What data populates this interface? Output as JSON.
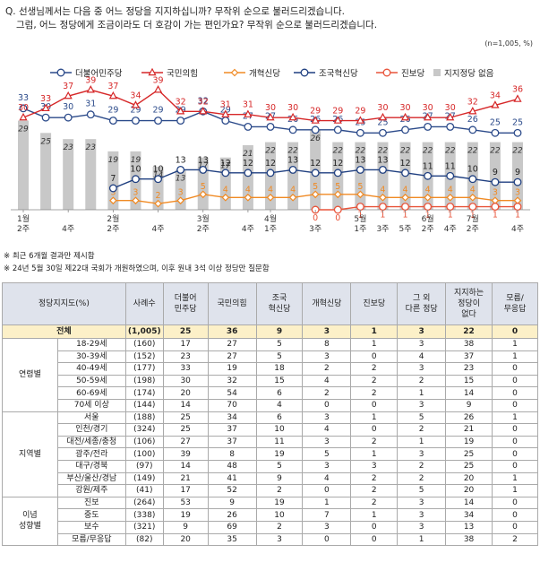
{
  "question": {
    "line1": "Q. 선생님께서는 다음 중 어느 정당을 지지하십니까? 무작위 순으로 불러드리겠습니다.",
    "line2": "그럼, 어느 정당에게 조금이라도 더 호감이 가는 편인가요? 무작위 순으로 불러드리겠습니다."
  },
  "sample_note": "(n=1,005, %)",
  "notes": [
    "※ 최근 6개월 결과만 제시함",
    "※ 24년 5월 30일 제22대 국회가 개원하였으며, 이후 원내 3석 이상 정당만 질문함"
  ],
  "colors": {
    "dem": "#2b4a8a",
    "ppp": "#d62728",
    "reform": "#f08a24",
    "rebuild": "#1f3f80",
    "progressive": "#e8543a",
    "none": "#c8c8c8"
  },
  "chart_data": {
    "type": "line",
    "legend_position": "top",
    "x": [
      "1월 2주",
      "1월 4주",
      "2월 2주",
      "2월 4주",
      "3월 2주",
      "3월 4주",
      "4월 1주",
      "4월 2주",
      "4월 3주",
      "4월 4주",
      "5월 1주",
      "5월 2주",
      "5월 3주",
      "5월 4주",
      "5월 5주",
      "6월 1주",
      "6월 2주",
      "6월 3주",
      "6월 4주",
      "7월 1주",
      "7월 2주",
      "7월 3주",
      "7월 4주"
    ],
    "x_tick_labels": [
      {
        "index": 0,
        "top": "1월",
        "bottom": "2주"
      },
      {
        "index": 2,
        "top": "",
        "bottom": "4주"
      },
      {
        "index": 4,
        "top": "2월",
        "bottom": "2주"
      },
      {
        "index": 6,
        "top": "",
        "bottom": "4주"
      },
      {
        "index": 8,
        "top": "3월",
        "bottom": "2주"
      },
      {
        "index": 10,
        "top": "",
        "bottom": "4주"
      },
      {
        "index": 11,
        "top": "4월",
        "bottom": "1주"
      },
      {
        "index": 13,
        "top": "",
        "bottom": "3주"
      },
      {
        "index": 15,
        "top": "5월",
        "bottom": "1주"
      },
      {
        "index": 16,
        "top": "",
        "bottom": "3주"
      },
      {
        "index": 17,
        "top": "",
        "bottom": "5주"
      },
      {
        "index": 18,
        "top": "6월",
        "bottom": "2주"
      },
      {
        "index": 19,
        "top": "",
        "bottom": "4주"
      },
      {
        "index": 20,
        "top": "7월",
        "bottom": "2주"
      },
      {
        "index": 22,
        "top": "",
        "bottom": "4주"
      }
    ],
    "ylim": [
      0,
      42
    ],
    "bar_series": {
      "name": "지지정당 없음",
      "values": [
        29,
        25,
        23,
        23,
        19,
        19,
        14,
        13,
        17,
        17,
        21,
        22,
        22,
        26,
        22,
        22,
        22,
        22,
        22,
        22,
        22,
        22,
        22
      ]
    },
    "series": [
      {
        "name": "더불어민주당",
        "key": "dem",
        "marker": "circle",
        "values": [
          33,
          30,
          30,
          31,
          29,
          29,
          29,
          29,
          32,
          29,
          27,
          27,
          26,
          26,
          26,
          25,
          25,
          26,
          27,
          27,
          26,
          25,
          25
        ]
      },
      {
        "name": "국민의힘",
        "key": "ppp",
        "marker": "triangle",
        "values": [
          30,
          33,
          37,
          39,
          37,
          34,
          39,
          32,
          32,
          31,
          31,
          30,
          30,
          29,
          29,
          29,
          30,
          30,
          30,
          30,
          32,
          34,
          36
        ]
      },
      {
        "name": "개혁신당",
        "key": "reform",
        "marker": "diamond",
        "values": [
          null,
          null,
          null,
          null,
          3,
          3,
          2,
          3,
          5,
          4,
          4,
          4,
          4,
          5,
          5,
          5,
          4,
          4,
          4,
          4,
          4,
          3,
          3
        ]
      },
      {
        "name": "조국혁신당",
        "key": "rebuild",
        "marker": "circle",
        "values": [
          null,
          null,
          null,
          null,
          7,
          10,
          10,
          13,
          13,
          12,
          12,
          12,
          13,
          12,
          12,
          13,
          13,
          12,
          11,
          11,
          10,
          9,
          9
        ]
      },
      {
        "name": "진보당",
        "key": "progressive",
        "marker": "circle",
        "values": [
          null,
          null,
          null,
          null,
          null,
          null,
          null,
          null,
          null,
          null,
          null,
          null,
          null,
          0,
          0,
          1,
          1,
          1,
          1,
          1,
          1,
          1,
          1
        ]
      }
    ]
  },
  "table": {
    "headers": [
      "정당지지도(%)",
      "사례수",
      "더불어\n민주당",
      "국민의힘",
      "조국\n혁신당",
      "개혁신당",
      "진보당",
      "그 외\n다른 정당",
      "지지하는\n정당이\n없다",
      "모름/\n무응답"
    ],
    "total": {
      "label": "전체",
      "n": "(1,005)",
      "vals": [
        "25",
        "36",
        "9",
        "3",
        "1",
        "3",
        "22",
        "0"
      ]
    },
    "groups": [
      {
        "name": "연령별",
        "rows": [
          {
            "label": "18-29세",
            "n": "(160)",
            "vals": [
              "17",
              "27",
              "5",
              "8",
              "1",
              "3",
              "38",
              "1"
            ]
          },
          {
            "label": "30-39세",
            "n": "(152)",
            "vals": [
              "23",
              "27",
              "5",
              "3",
              "0",
              "4",
              "37",
              "1"
            ]
          },
          {
            "label": "40-49세",
            "n": "(177)",
            "vals": [
              "33",
              "19",
              "18",
              "2",
              "2",
              "3",
              "23",
              "0"
            ]
          },
          {
            "label": "50-59세",
            "n": "(198)",
            "vals": [
              "30",
              "32",
              "15",
              "4",
              "2",
              "2",
              "15",
              "0"
            ]
          },
          {
            "label": "60-69세",
            "n": "(174)",
            "vals": [
              "20",
              "54",
              "6",
              "2",
              "2",
              "1",
              "14",
              "0"
            ]
          },
          {
            "label": "70세 이상",
            "n": "(144)",
            "vals": [
              "14",
              "70",
              "4",
              "0",
              "0",
              "3",
              "9",
              "0"
            ]
          }
        ]
      },
      {
        "name": "지역별",
        "rows": [
          {
            "label": "서울",
            "n": "(188)",
            "vals": [
              "25",
              "34",
              "6",
              "3",
              "1",
              "5",
              "26",
              "1"
            ]
          },
          {
            "label": "인천/경기",
            "n": "(324)",
            "vals": [
              "25",
              "37",
              "10",
              "4",
              "0",
              "2",
              "21",
              "0"
            ]
          },
          {
            "label": "대전/세종/충청",
            "n": "(106)",
            "vals": [
              "27",
              "37",
              "11",
              "3",
              "2",
              "1",
              "19",
              "0"
            ]
          },
          {
            "label": "광주/전라",
            "n": "(100)",
            "vals": [
              "39",
              "8",
              "19",
              "5",
              "1",
              "3",
              "25",
              "0"
            ]
          },
          {
            "label": "대구/경북",
            "n": "(97)",
            "vals": [
              "14",
              "48",
              "5",
              "3",
              "3",
              "2",
              "25",
              "0"
            ]
          },
          {
            "label": "부산/울산/경남",
            "n": "(149)",
            "vals": [
              "21",
              "41",
              "9",
              "4",
              "2",
              "2",
              "20",
              "1"
            ]
          },
          {
            "label": "강원/제주",
            "n": "(41)",
            "vals": [
              "17",
              "52",
              "2",
              "0",
              "2",
              "5",
              "20",
              "1"
            ]
          }
        ]
      },
      {
        "name": "이념\n성향별",
        "rows": [
          {
            "label": "진보",
            "n": "(264)",
            "vals": [
              "53",
              "9",
              "19",
              "1",
              "2",
              "3",
              "14",
              "0"
            ]
          },
          {
            "label": "중도",
            "n": "(338)",
            "vals": [
              "19",
              "26",
              "10",
              "7",
              "1",
              "3",
              "34",
              "0"
            ]
          },
          {
            "label": "보수",
            "n": "(321)",
            "vals": [
              "9",
              "69",
              "2",
              "3",
              "0",
              "3",
              "13",
              "0"
            ]
          },
          {
            "label": "모름/무응답",
            "n": "(82)",
            "vals": [
              "20",
              "35",
              "3",
              "0",
              "0",
              "1",
              "38",
              "2"
            ]
          }
        ]
      }
    ]
  }
}
